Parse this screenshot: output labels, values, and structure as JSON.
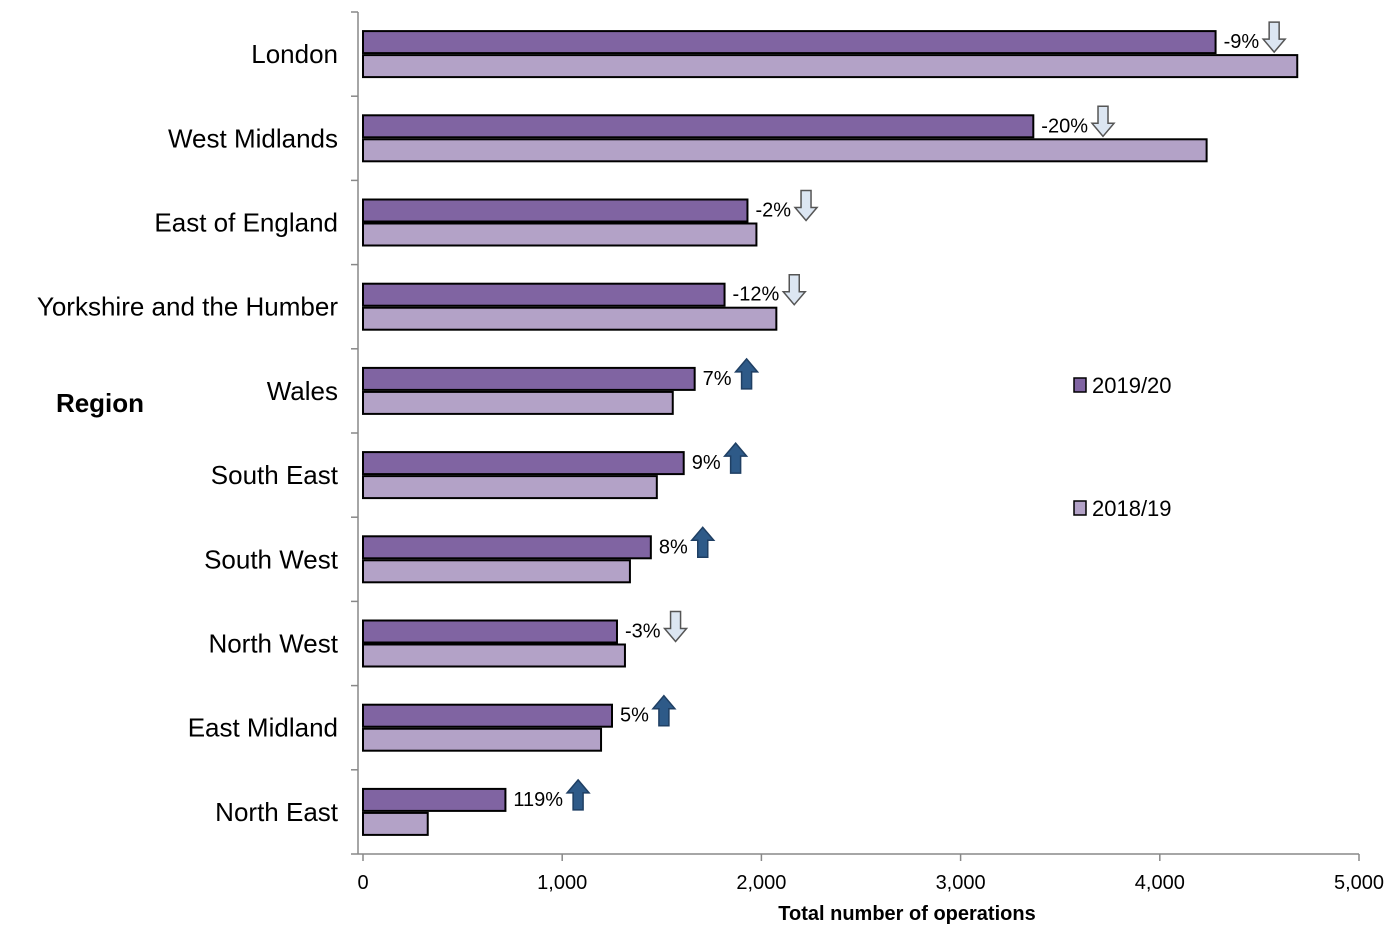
{
  "chart_data": {
    "type": "bar",
    "orientation": "horizontal",
    "categories": [
      "London",
      "West Midlands",
      "East of England",
      "Yorkshire and the Humber",
      "Wales",
      "South East",
      "South West",
      "North West",
      "East Midland",
      "North East"
    ],
    "series": [
      {
        "name": "2019/20",
        "color": "#8064a2",
        "values": [
          4280,
          3365,
          1930,
          1815,
          1665,
          1610,
          1445,
          1275,
          1250,
          715
        ]
      },
      {
        "name": "2018/19",
        "color": "#b3a2c7",
        "values": [
          4690,
          4235,
          1975,
          2075,
          1555,
          1475,
          1340,
          1315,
          1195,
          325
        ]
      }
    ],
    "change_labels": [
      "-9%",
      "-20%",
      "-2%",
      "-12%",
      "7%",
      "9%",
      "8%",
      "-3%",
      "5%",
      "119%"
    ],
    "change_direction": [
      "down",
      "down",
      "down",
      "down",
      "up",
      "up",
      "up",
      "down",
      "up",
      "up"
    ],
    "arrow_colors": {
      "up": "#2e5a88",
      "down": "#dce6f2"
    },
    "xlabel": "Total number of operations",
    "ylabel": "Region",
    "xlim": [
      0,
      5000
    ],
    "xticks": [
      0,
      1000,
      2000,
      3000,
      4000,
      5000
    ],
    "xtick_labels": [
      "0",
      "1,000",
      "2,000",
      "3,000",
      "4,000",
      "5,000"
    ],
    "grid": false,
    "legend_position": "right"
  }
}
